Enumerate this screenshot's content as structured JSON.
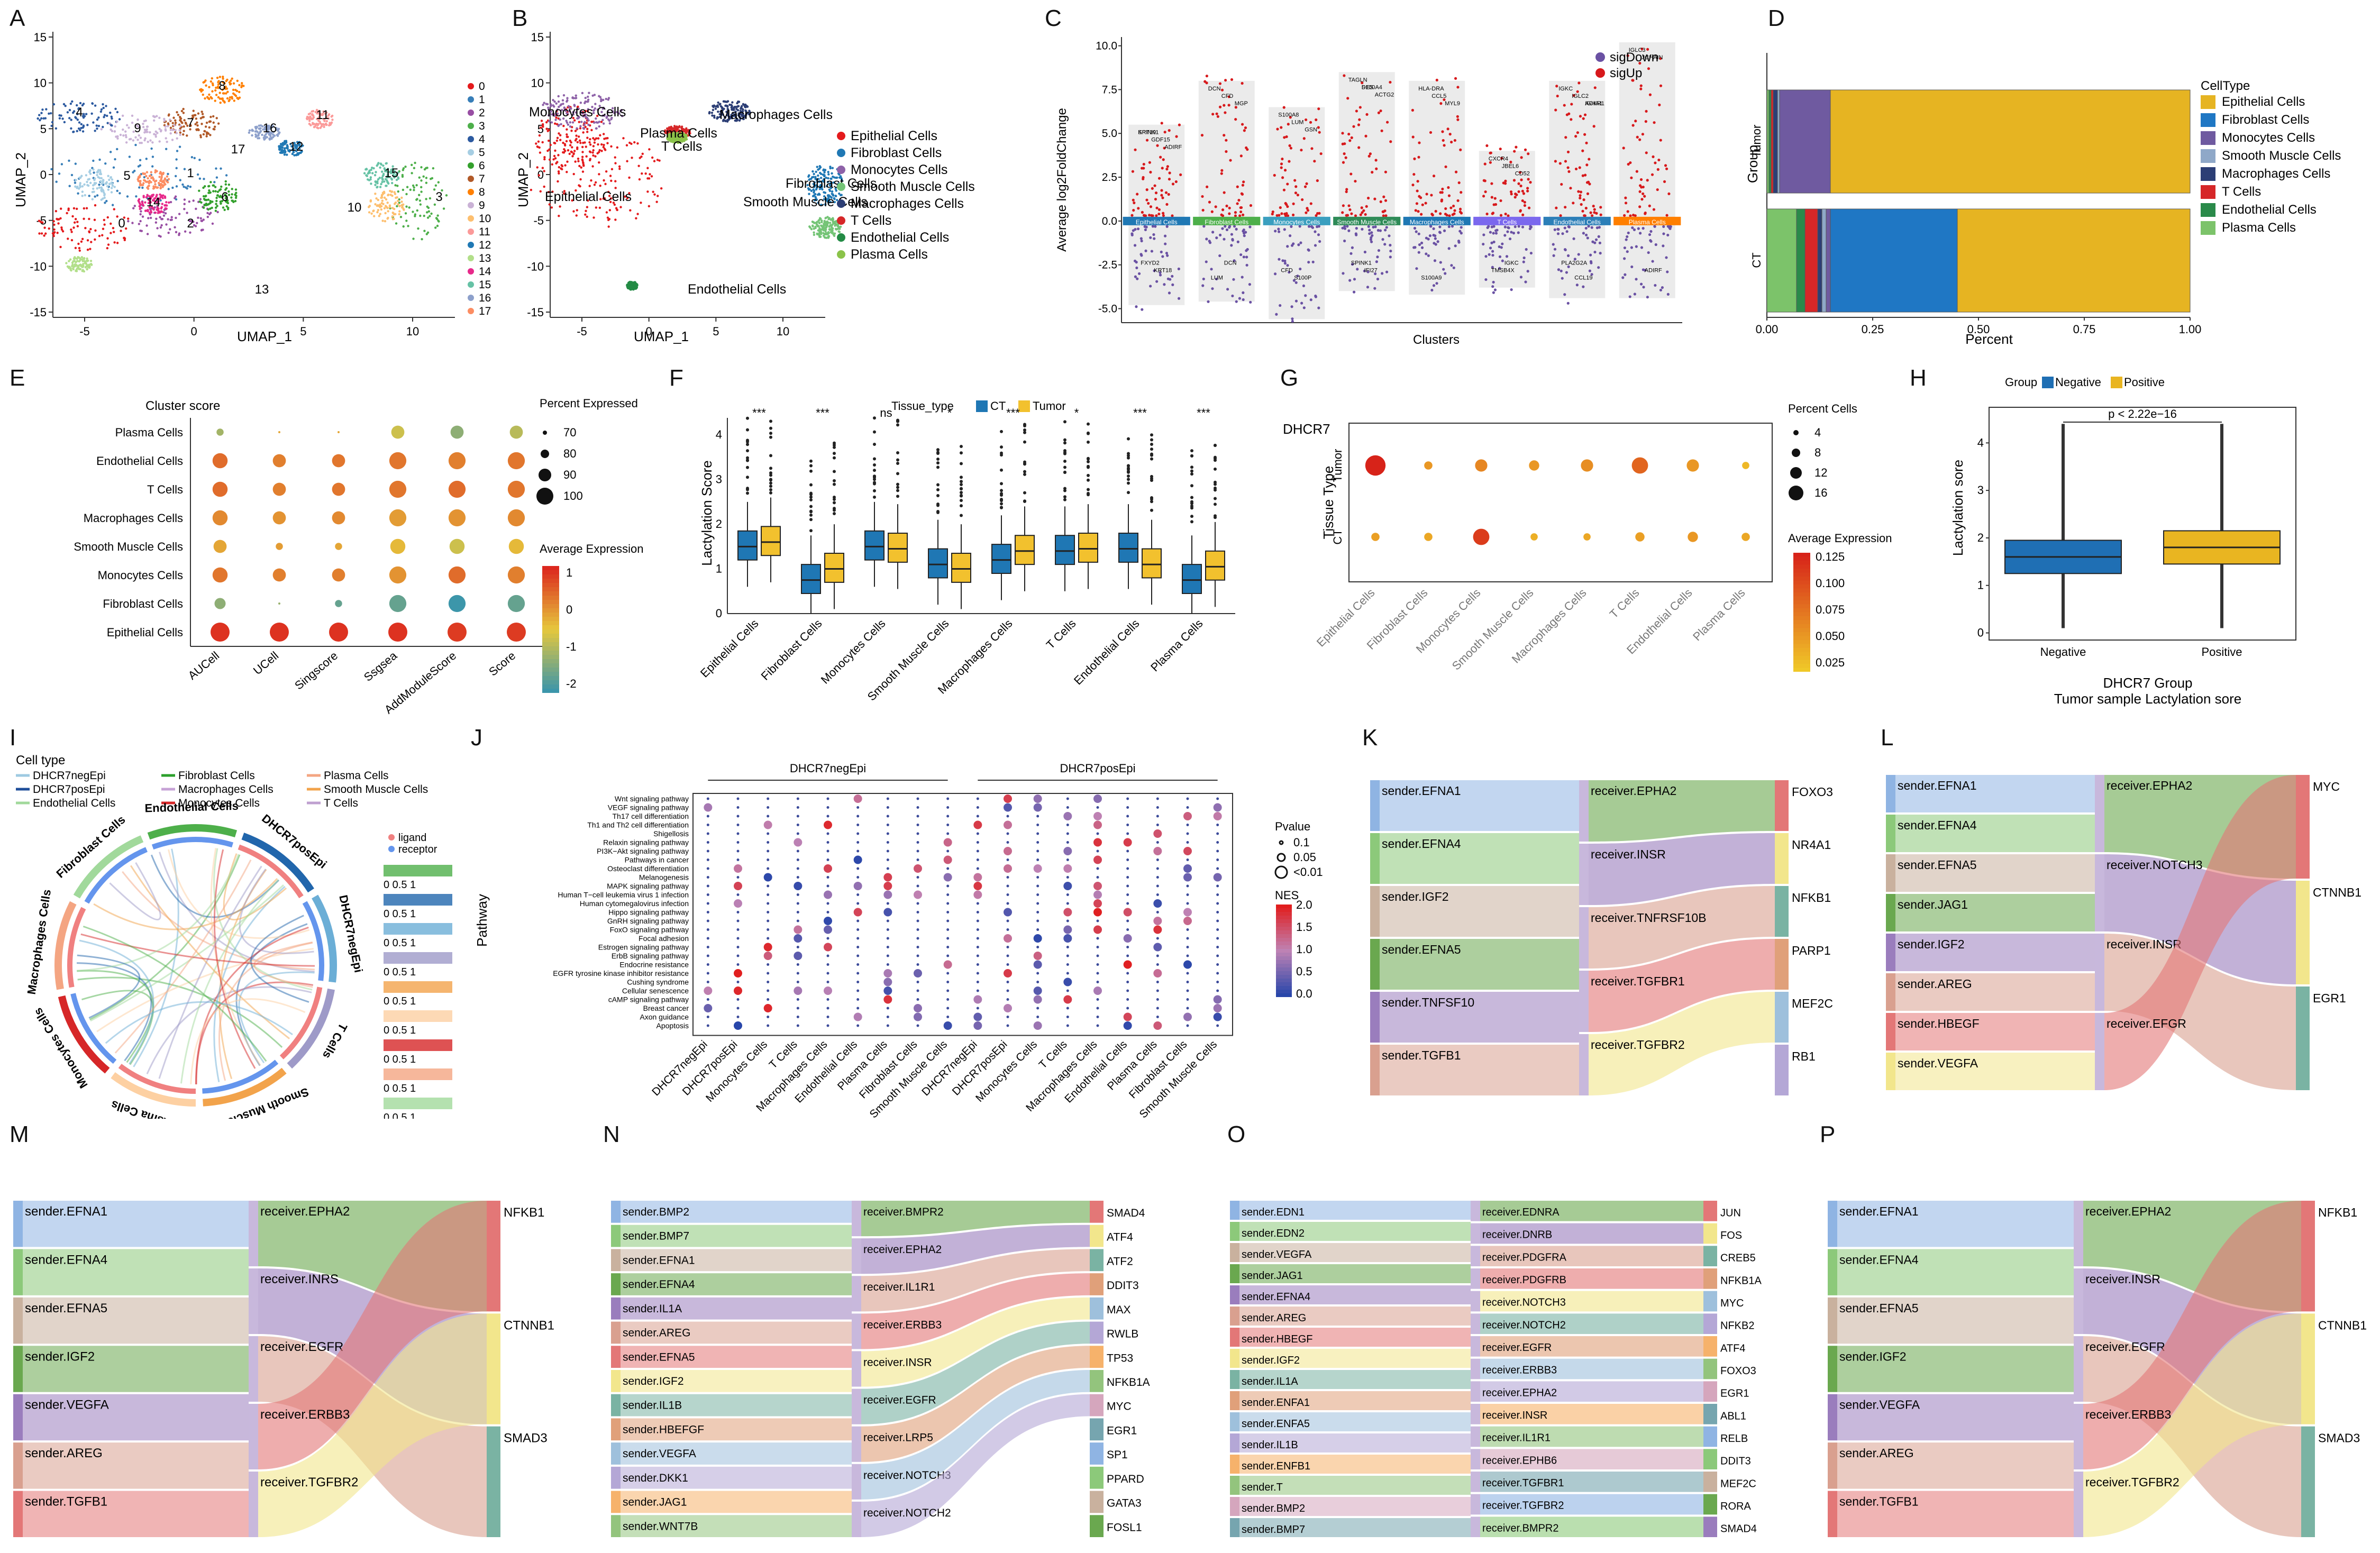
{
  "panels": [
    "A",
    "B",
    "C",
    "D",
    "E",
    "F",
    "G",
    "H",
    "I",
    "J",
    "K",
    "L",
    "M",
    "N",
    "O",
    "P"
  ],
  "A": {
    "xlabel": "UMAP_1",
    "ylabel": "UMAP_2",
    "legend": [
      "0",
      "1",
      "2",
      "3",
      "4",
      "5",
      "6",
      "7",
      "8",
      "9",
      "10",
      "11",
      "12",
      "13",
      "14",
      "15",
      "16",
      "17"
    ],
    "colors": [
      "#e41a1c",
      "#377eb8",
      "#984ea3",
      "#4daf4a",
      "#2c5aa0",
      "#a6cee3",
      "#33a02c",
      "#b15928",
      "#ff7f00",
      "#cab2d6",
      "#fdbf6f",
      "#fb9a99",
      "#1f78b4",
      "#b2df8a",
      "#e7298a",
      "#66c2a5",
      "#8da0cb",
      "#fc8d62"
    ],
    "clusters": [
      "8",
      "4",
      "7",
      "16",
      "11",
      "12",
      "17",
      "1",
      "6",
      "15",
      "3",
      "0",
      "2",
      "14",
      "10",
      "5",
      "9",
      "13"
    ],
    "xticks": [
      "-5",
      "0",
      "5",
      "10"
    ],
    "yticks": [
      "15",
      "10",
      "5",
      "0",
      "-5",
      "-10",
      "-15"
    ]
  },
  "B": {
    "xlabel": "UMAP_1",
    "ylabel": "UMAP_2",
    "legend": [
      "Epithelial Cells",
      "Fibroblast Cells",
      "Monocytes Cells",
      "Smooth Muscle Cells",
      "Macrophages Cells",
      "T Cells",
      "Endothelial Cells",
      "Plasma Cells"
    ],
    "colors": [
      "#e41a1c",
      "#1f78b4",
      "#8e62a8",
      "#74c476",
      "#2c3e75",
      "#d62728",
      "#238b45",
      "#8bc34a"
    ],
    "annot": [
      "Monocytes Cells",
      "Macrophages Cells",
      "Plasma Cells",
      "T Cells",
      "Epithelial Cells",
      "Fibroblast Cells",
      "Smooth Muscle Cells",
      "Endothelial Cells"
    ],
    "xticks": [
      "-5",
      "0",
      "5",
      "10"
    ],
    "yticks": [
      "15",
      "10",
      "5",
      "0",
      "-5",
      "-10",
      "-15"
    ]
  },
  "C": {
    "ylabel": "Average log2FoldChange",
    "xlabel": "Clusters",
    "legend": [
      "sigDown",
      "sigUp"
    ],
    "clusters": [
      "Epithelial Cells",
      "Fibroblast Cells",
      "Monocytes Cells",
      "Smooth Muscle Cells",
      "Macrophages Cells",
      "T Cells",
      "Endothelial Cells",
      "Plasma Cells"
    ],
    "yticks": [
      "10.0",
      "7.5",
      "5.0",
      "2.5",
      "0.0",
      "-2.5",
      "-5.0"
    ],
    "genesUp": [
      "SPINK1",
      "GDF15",
      "ADIRF",
      "KRT19",
      "CFD",
      "MGP",
      "DCN",
      "LUM",
      "GSN",
      "S100A8",
      "S100A4",
      "ACTG2",
      "TAGLN",
      "DES",
      "MYL9",
      "HLA-DRA",
      "CCL5",
      "CD52",
      "CXCR4",
      "JBEL6",
      "ACKR1",
      "IGKC",
      "IGLC2",
      "IGHA1",
      "IGLC3",
      "JCHAIN"
    ],
    "genesDown": [
      "FXYD2",
      "KRT18",
      "LUM",
      "DCN",
      "CFD",
      "S100P",
      "SPINK1",
      "IFI27",
      "S100A9",
      "IGKC",
      "TMSB4X",
      "CCL19",
      "PLA2G2A",
      "ADIRF"
    ]
  },
  "D": {
    "ylabel": "Group",
    "xlabel": "Percent",
    "groups": [
      "Tumor",
      "CT"
    ],
    "legend_title": "CellType",
    "legend": [
      "Epithelial Cells",
      "Fibroblast Cells",
      "Monocytes Cells",
      "Smooth Muscle Cells",
      "Macrophages Cells",
      "T Cells",
      "Endothelial Cells",
      "Plasma Cells"
    ],
    "colors": [
      "#e6b422",
      "#1f77c4",
      "#6f5aa0",
      "#8fa8c8",
      "#2c3e75",
      "#d62728",
      "#2a8a4a",
      "#7cc36a"
    ],
    "xticks": [
      "0.00",
      "0.25",
      "0.50",
      "0.75",
      "1.00"
    ],
    "tumor": [
      0.85,
      0.0,
      0.12,
      0.005,
      0.01,
      0.005,
      0.005,
      0.005
    ],
    "ct": [
      0.55,
      0.3,
      0.01,
      0.01,
      0.01,
      0.03,
      0.02,
      0.07
    ]
  },
  "E": {
    "title": "Cluster score",
    "ylabels": [
      "Plasma Cells",
      "Endothelial Cells",
      "T Cells",
      "Macrophages Cells",
      "Smooth Muscle Cells",
      "Monocytes Cells",
      "Fibroblast Cells",
      "Epithelial Cells"
    ],
    "xlabels": [
      "AUCell",
      "UCell",
      "Singscore",
      "Ssgsea",
      "AddModuleScore",
      "Score"
    ],
    "size_title": "Percent Expressed",
    "size_vals": [
      "70",
      "80",
      "90",
      "100"
    ],
    "color_title": "Average Expression",
    "color_ticks": [
      "1",
      "0",
      "-1",
      "-2"
    ]
  },
  "F": {
    "ylabel": "Lactylation Score",
    "legend_title": "Tissue_type",
    "legend": [
      "CT",
      "Tumor"
    ],
    "cats": [
      "Epithelial Cells",
      "Fibroblast Cells",
      "Monocytes Cells",
      "Smooth Muscle Cells",
      "Macrophages Cells",
      "T Cells",
      "Endothelial Cells",
      "Plasma Cells"
    ],
    "sig": [
      "***",
      "***",
      "ns",
      "*",
      "***",
      "*",
      "***",
      "***"
    ],
    "yticks": [
      "4",
      "3",
      "2",
      "1",
      "0"
    ],
    "ct_med": [
      1.5,
      0.75,
      1.5,
      1.1,
      1.2,
      1.4,
      1.45,
      0.75
    ],
    "tu_med": [
      1.6,
      1.0,
      1.45,
      1.0,
      1.4,
      1.45,
      1.1,
      1.05
    ]
  },
  "G": {
    "title": "DHCR7",
    "ylabel": "Tissue Type",
    "rows": [
      "Tumor",
      "CT"
    ],
    "cats": [
      "Epithelial Cells",
      "Fibroblast Cells",
      "Monocytes Cells",
      "Smooth Muscle Cells",
      "Macrophages Cells",
      "T Cells",
      "Endothelial Cells",
      "Plasma Cells"
    ],
    "size_title": "Percent Cells",
    "size_vals": [
      "4",
      "8",
      "12",
      "16"
    ],
    "color_title": "Average Expression",
    "color_ticks": [
      "0.125",
      "0.100",
      "0.075",
      "0.050",
      "0.025"
    ]
  },
  "H": {
    "legend_title": "Group",
    "legend": [
      "Negative",
      "Positive"
    ],
    "ylabel": "Lactylation sore",
    "xlabel": "DHCR7 Group",
    "subtitle": "Tumor sample Lactylation sore",
    "pval": "p < 2.22e−16",
    "yticks": [
      "4",
      "3",
      "2",
      "1",
      "0"
    ],
    "neg_med": 1.6,
    "pos_med": 1.8
  },
  "I": {
    "legend_title": "Cell type",
    "legend": [
      "DHCR7negEpi",
      "Fibroblast Cells",
      "Plasma Cells",
      "DHCR7posEpi",
      "Macrophages Cells",
      "Smooth Muscle Cells",
      "Endothelial Cells",
      "Monocytes Cells",
      "T Cells"
    ],
    "ring": [
      "Endothelial Cells",
      "DHCR7posEpi",
      "DHCR7negEpi",
      "T Cells",
      "Smooth Muscle Cells",
      "Plasma Cells",
      "Monocytes Cells",
      "Macrophages Cells",
      "Fibroblast Cells"
    ],
    "lr": [
      "ligand",
      "receptor"
    ],
    "scale": "0   0.5  1"
  },
  "J": {
    "ylabel": "Pathway",
    "groups": [
      "DHCR7negEpi",
      "DHCR7posEpi"
    ],
    "pathways": [
      "Wnt signaling pathway",
      "VEGF signaling pathway",
      "Th17 cell differentiation",
      "Th1 and Th2 cell differentiation",
      "Shigellosis",
      "Relaxin signaling pathway",
      "PI3K−Akt signaling pathway",
      "Pathways in cancer",
      "Osteoclast differentiation",
      "Melanogenesis",
      "MAPK signaling pathway",
      "Human T−cell leukemia virus 1 infection",
      "Human cytomegalovirus infection",
      "Hippo signaling pathway",
      "GnRH signaling pathway",
      "FoxO signaling pathway",
      "Focal adhesion",
      "Estrogen signaling pathway",
      "ErbB signaling pathway",
      "Endocrine resistance",
      "EGFR tyrosine kinase inhibitor resistance",
      "Cushing syndrome",
      "Cellular senescence",
      "cAMP signaling pathway",
      "Breast cancer",
      "Axon guidance",
      "Apoptosis"
    ],
    "xlabels": [
      "DHCR7negEpi",
      "DHCR7posEpi",
      "Monocytes Cells",
      "T Cells",
      "Macrophages Cells",
      "Endothelial Cells",
      "Plasma Cells",
      "Fibroblast Cells",
      "Smooth Muscle Cells",
      "DHCR7negEpi",
      "DHCR7posEpi",
      "Monocytes Cells",
      "T Cells",
      "Macrophages Cells",
      "Endothelial Cells",
      "Plasma Cells",
      "Fibroblast Cells",
      "Smooth Muscle Cells"
    ],
    "p_title": "Pvalue",
    "p_vals": [
      "0.1",
      "0.05",
      "<0.01"
    ],
    "nes_title": "NES",
    "nes_ticks": [
      "2.0",
      "1.5",
      "1.0",
      "0.5",
      "0.0"
    ]
  },
  "K": {
    "senders": [
      "sender.EFNA1",
      "sender.EFNA4",
      "sender.IGF2",
      "sender.EFNA5",
      "sender.TNFSF10",
      "sender.TGFB1"
    ],
    "receivers": [
      "receiver.EPHA2",
      "receiver.INSR",
      "receiver.TNFRSF10B",
      "receiver.TGFBR1",
      "receiver.TGFBR2"
    ],
    "targets": [
      "FOXO3",
      "NR4A1",
      "NFKB1",
      "PARP1",
      "MEF2C",
      "RB1"
    ]
  },
  "L": {
    "senders": [
      "sender.EFNA1",
      "sender.EFNA4",
      "sender.EFNA5",
      "sender.JAG1",
      "sender.IGF2",
      "sender.AREG",
      "sender.HBEGF",
      "sender.VEGFA"
    ],
    "receivers": [
      "receiver.EPHA2",
      "receiver.NOTCH3",
      "receiver.INSR",
      "receiver.EFGR"
    ],
    "targets": [
      "MYC",
      "CTNNB1",
      "EGR1"
    ]
  },
  "M": {
    "senders": [
      "sender.EFNA1",
      "sender.EFNA4",
      "sender.EFNA5",
      "sender.IGF2",
      "sender.VEGFA",
      "sender.AREG",
      "sender.TGFB1"
    ],
    "receivers": [
      "receiver.EPHA2",
      "receiver.INRS",
      "receiver.EGFR",
      "receiver.ERBB3",
      "receiver.TGFBR2"
    ],
    "targets": [
      "NFKB1",
      "CTNNB1",
      "SMAD3"
    ]
  },
  "N": {
    "senders": [
      "sender.BMP2",
      "sender.BMP7",
      "sender.EFNA1",
      "sender.EFNA4",
      "sender.IL1A",
      "sender.AREG",
      "sender.EFNA5",
      "sender.IGF2",
      "sender.IL1B",
      "sender.HBEFGF",
      "sender.VEGFA",
      "sender.DKK1",
      "sender.JAG1",
      "sender.WNT7B"
    ],
    "receivers": [
      "receiver.BMPR2",
      "receiver.EPHA2",
      "receiver.IL1R1",
      "receiver.ERBB3",
      "receiver.INSR",
      "receiver.EGFR",
      "receiver.LRP5",
      "receiver.NOTCH3",
      "receiver.NOTCH2"
    ],
    "targets": [
      "SMAD4",
      "ATF4",
      "ATF2",
      "DDIT3",
      "MAX",
      "RWLB",
      "TP53",
      "NFKB1A",
      "MYC",
      "EGR1",
      "SP1",
      "PPARD",
      "GATA3",
      "FOSL1"
    ]
  },
  "O": {
    "senders": [
      "sender.EDN1",
      "sender.EDN2",
      "sender.VEGFA",
      "sender.JAG1",
      "sender.EFNA4",
      "sender.AREG",
      "sender.HBEGF",
      "sender.IGF2",
      "sender.IL1A",
      "sender.ENFA1",
      "sender.ENFA5",
      "sender.IL1B",
      "sender.ENFB1",
      "sender.T",
      "sender.BMP2",
      "sender.BMP7"
    ],
    "receivers": [
      "receiver.EDNRA",
      "receiver.DNRB",
      "receiver.PDGFRA",
      "receiver.PDGFRB",
      "receiver.NOTCH3",
      "receiver.NOTCH2",
      "receiver.EGFR",
      "receiver.ERBB3",
      "receiver.EPHA2",
      "receiver.INSR",
      "receiver.IL1R1",
      "receiver.EPHB6",
      "receiver.TGFBR1",
      "receiver.TGFBR2",
      "receiver.BMPR2"
    ],
    "targets": [
      "JUN",
      "FOS",
      "CREB5",
      "NFKB1A",
      "MYC",
      "NFKB2",
      "ATF4",
      "FOXO3",
      "EGR1",
      "ABL1",
      "RELB",
      "DDIT3",
      "MEF2C",
      "RORA",
      "SMAD4"
    ]
  },
  "P": {
    "senders": [
      "sender.EFNA1",
      "sender.EFNA4",
      "sender.EFNA5",
      "sender.IGF2",
      "sender.VEGFA",
      "sender.AREG",
      "sender.TGFB1"
    ],
    "receivers": [
      "receiver.EPHA2",
      "receiver.INSR",
      "receiver.EGFR",
      "receiver.ERBB3",
      "receiver.TGFBR2"
    ],
    "targets": [
      "NFKB1",
      "CTNNB1",
      "SMAD3"
    ]
  }
}
